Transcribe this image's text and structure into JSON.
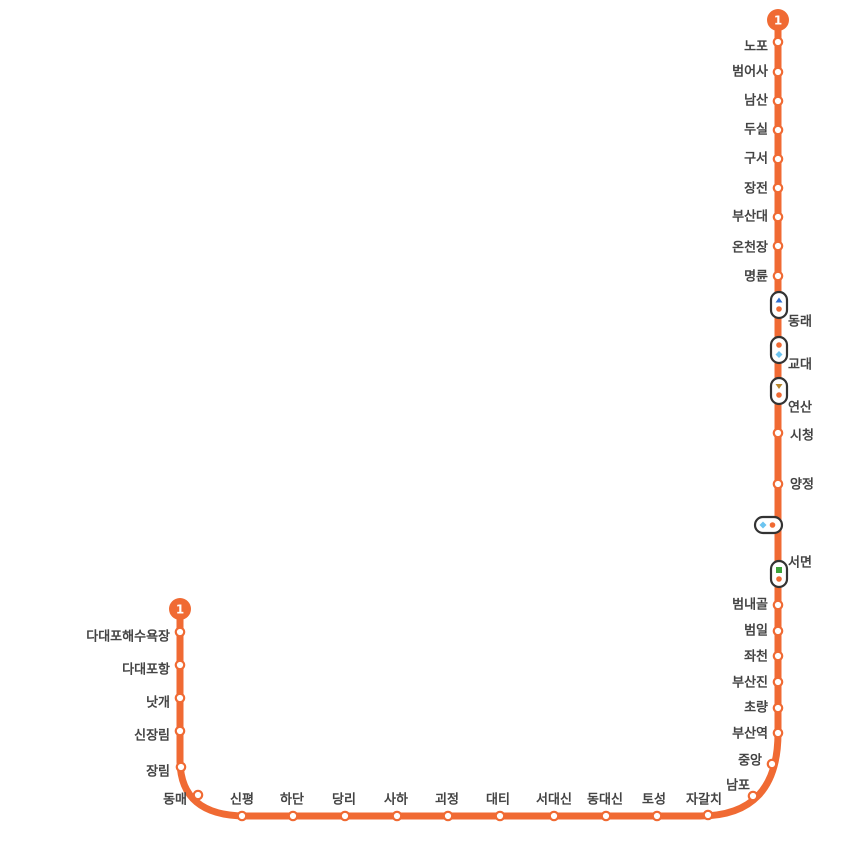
{
  "line": {
    "number": "1",
    "color": "#f06a33",
    "transfer_colors": {
      "line2": "#3ea33a",
      "line3": "#b8862b",
      "line4": "#2f6fd1",
      "donghae": "#6cc4f0"
    }
  },
  "stations": [
    {
      "id": "nopo",
      "name": "노포"
    },
    {
      "id": "beomeosa",
      "name": "범어사"
    },
    {
      "id": "namsan",
      "name": "남산"
    },
    {
      "id": "dusil",
      "name": "두실"
    },
    {
      "id": "guseo",
      "name": "구서"
    },
    {
      "id": "jangjeon",
      "name": "장전"
    },
    {
      "id": "busan-univ",
      "name": "부산대"
    },
    {
      "id": "oncheonjang",
      "name": "온천장"
    },
    {
      "id": "myeongnyun",
      "name": "명륜"
    },
    {
      "id": "dongnae",
      "name": "동래"
    },
    {
      "id": "gyodae",
      "name": "교대"
    },
    {
      "id": "yeonsan",
      "name": "연산"
    },
    {
      "id": "city-hall",
      "name": "시청"
    },
    {
      "id": "yangjeong",
      "name": "양정"
    },
    {
      "id": "bujeon",
      "name": ""
    },
    {
      "id": "seomyeon",
      "name": "서면"
    },
    {
      "id": "beomnaegol",
      "name": "범내골"
    },
    {
      "id": "beomil",
      "name": "범일"
    },
    {
      "id": "jwacheon",
      "name": "좌천"
    },
    {
      "id": "busanjin",
      "name": "부산진"
    },
    {
      "id": "choryang",
      "name": "초량"
    },
    {
      "id": "busan-station",
      "name": "부산역"
    },
    {
      "id": "jungang",
      "name": "중앙"
    },
    {
      "id": "nampo",
      "name": "남포"
    },
    {
      "id": "jagalchi",
      "name": "자갈치"
    },
    {
      "id": "toseong",
      "name": "토성"
    },
    {
      "id": "dongdaesin",
      "name": "동대신"
    },
    {
      "id": "seodaesin",
      "name": "서대신"
    },
    {
      "id": "daeti",
      "name": "대티"
    },
    {
      "id": "goejeong",
      "name": "괴정"
    },
    {
      "id": "saha",
      "name": "사하"
    },
    {
      "id": "dangni",
      "name": "당리"
    },
    {
      "id": "hadan",
      "name": "하단"
    },
    {
      "id": "sinpyeong",
      "name": "신평"
    },
    {
      "id": "dongmae",
      "name": "동매"
    },
    {
      "id": "jangnim",
      "name": "장림"
    },
    {
      "id": "sinjangnim",
      "name": "신장림"
    },
    {
      "id": "nakgae",
      "name": "낫개"
    },
    {
      "id": "dadaepohang",
      "name": "다대포항"
    },
    {
      "id": "dadaepo-beach",
      "name": "다대포해수욕장"
    }
  ]
}
